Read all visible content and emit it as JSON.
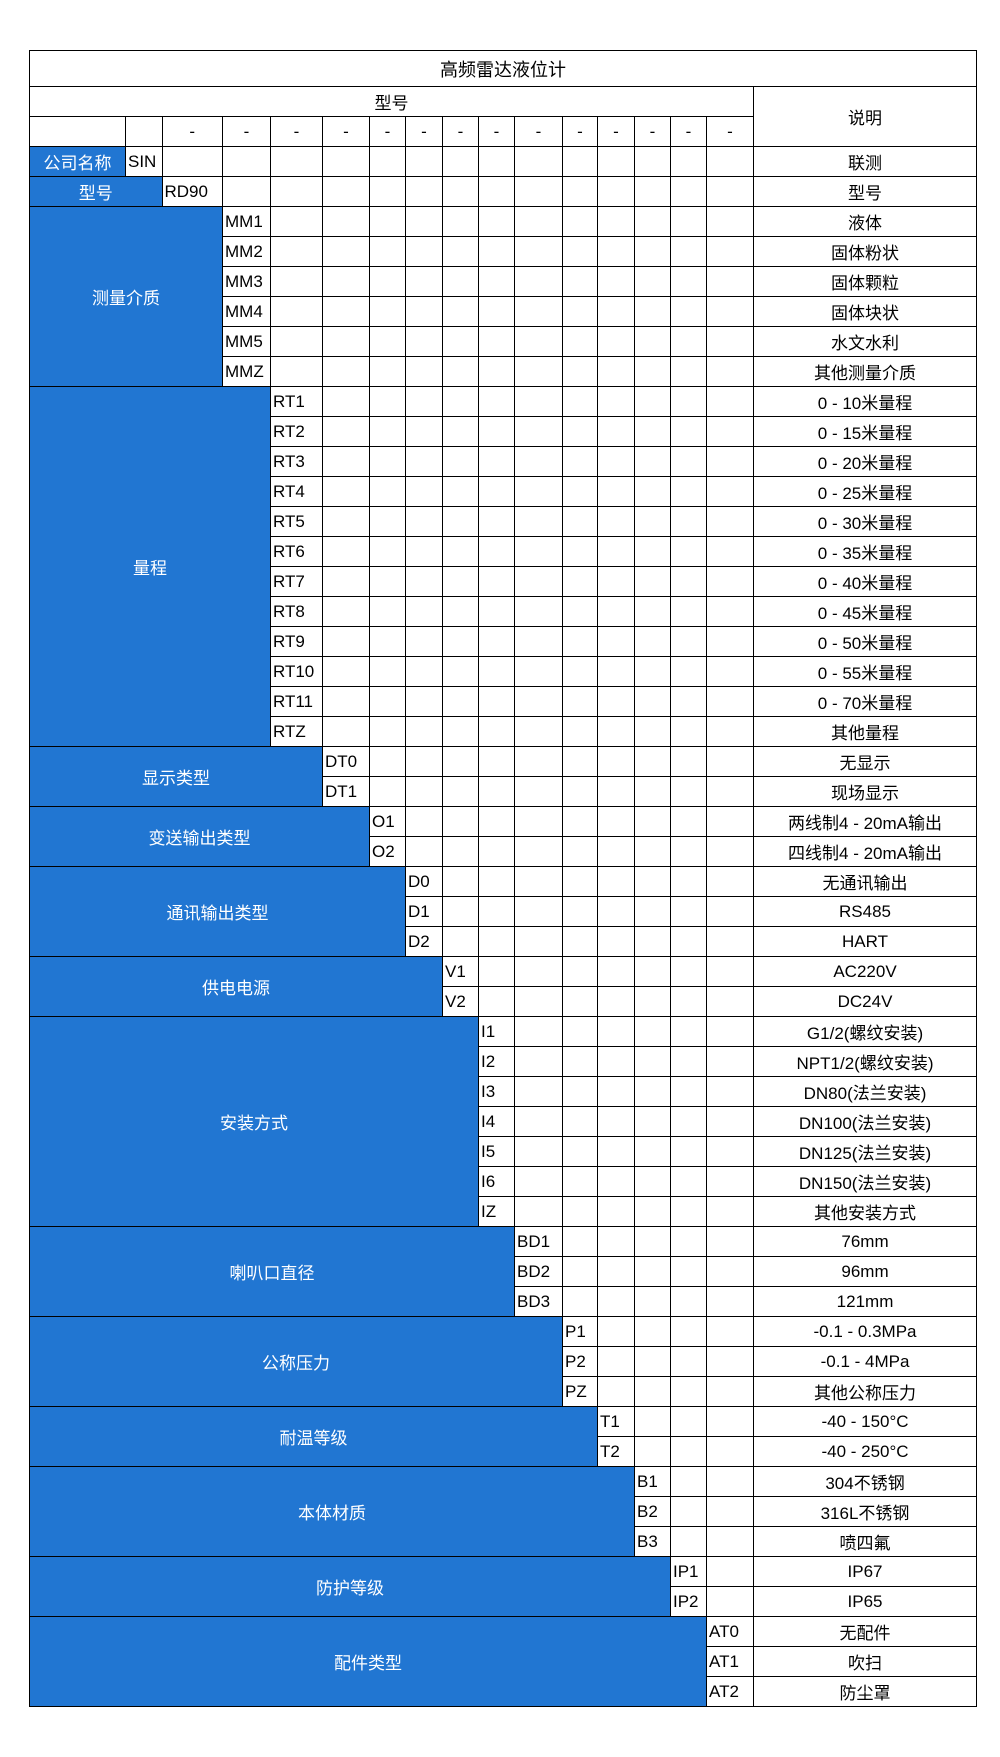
{
  "title": "高频雷达液位计",
  "header": {
    "model_label": "型号",
    "desc_label": "说明",
    "dash": "-"
  },
  "colors": {
    "category_fill": "#2176d2",
    "category_text": "#ffffff",
    "border": "#000000"
  },
  "groups": [
    {
      "label": "公司名称",
      "code_col": 1,
      "items": [
        {
          "code": "SIN",
          "desc": "联测"
        }
      ]
    },
    {
      "label": "型号",
      "code_col": 2,
      "items": [
        {
          "code": "RD90",
          "desc": "型号"
        }
      ]
    },
    {
      "label": "测量介质",
      "code_col": 3,
      "items": [
        {
          "code": "MM1",
          "desc": "液体"
        },
        {
          "code": "MM2",
          "desc": "固体粉状"
        },
        {
          "code": "MM3",
          "desc": "固体颗粒"
        },
        {
          "code": "MM4",
          "desc": "固体块状"
        },
        {
          "code": "MM5",
          "desc": "水文水利"
        },
        {
          "code": "MMZ",
          "desc": "其他测量介质"
        }
      ]
    },
    {
      "label": "量程",
      "code_col": 4,
      "items": [
        {
          "code": "RT1",
          "desc": "0 - 10米量程"
        },
        {
          "code": "RT2",
          "desc": "0 - 15米量程"
        },
        {
          "code": "RT3",
          "desc": "0 - 20米量程"
        },
        {
          "code": "RT4",
          "desc": "0 - 25米量程"
        },
        {
          "code": "RT5",
          "desc": "0 - 30米量程"
        },
        {
          "code": "RT6",
          "desc": "0 - 35米量程"
        },
        {
          "code": "RT7",
          "desc": "0 - 40米量程"
        },
        {
          "code": "RT8",
          "desc": "0 - 45米量程"
        },
        {
          "code": "RT9",
          "desc": "0 - 50米量程"
        },
        {
          "code": "RT10",
          "desc": "0 - 55米量程"
        },
        {
          "code": "RT11",
          "desc": "0 - 70米量程"
        },
        {
          "code": "RTZ",
          "desc": "其他量程"
        }
      ]
    },
    {
      "label": "显示类型",
      "code_col": 5,
      "items": [
        {
          "code": "DT0",
          "desc": "无显示"
        },
        {
          "code": "DT1",
          "desc": "现场显示"
        }
      ]
    },
    {
      "label": "变送输出类型",
      "code_col": 6,
      "items": [
        {
          "code": "O1",
          "desc": "两线制4 - 20mA输出"
        },
        {
          "code": "O2",
          "desc": "四线制4 - 20mA输出"
        }
      ]
    },
    {
      "label": "通讯输出类型",
      "code_col": 7,
      "items": [
        {
          "code": "D0",
          "desc": "无通讯输出"
        },
        {
          "code": "D1",
          "desc": "RS485"
        },
        {
          "code": "D2",
          "desc": "HART"
        }
      ]
    },
    {
      "label": "供电电源",
      "code_col": 8,
      "items": [
        {
          "code": "V1",
          "desc": "AC220V"
        },
        {
          "code": "V2",
          "desc": "DC24V"
        }
      ]
    },
    {
      "label": "安装方式",
      "code_col": 9,
      "items": [
        {
          "code": "I1",
          "desc": "G1/2(螺纹安装)"
        },
        {
          "code": "I2",
          "desc": "NPT1/2(螺纹安装)"
        },
        {
          "code": "I3",
          "desc": "DN80(法兰安装)"
        },
        {
          "code": "I4",
          "desc": "DN100(法兰安装)"
        },
        {
          "code": "I5",
          "desc": "DN125(法兰安装)"
        },
        {
          "code": "I6",
          "desc": "DN150(法兰安装)"
        },
        {
          "code": "IZ",
          "desc": "其他安装方式"
        }
      ]
    },
    {
      "label": "喇叭口直径",
      "code_col": 10,
      "items": [
        {
          "code": "BD1",
          "desc": "76mm"
        },
        {
          "code": "BD2",
          "desc": "96mm"
        },
        {
          "code": "BD3",
          "desc": "121mm"
        }
      ]
    },
    {
      "label": "公称压力",
      "code_col": 11,
      "items": [
        {
          "code": "P1",
          "desc": "-0.1 - 0.3MPa"
        },
        {
          "code": "P2",
          "desc": "-0.1 - 4MPa"
        },
        {
          "code": "PZ",
          "desc": "其他公称压力"
        }
      ]
    },
    {
      "label": "耐温等级",
      "code_col": 12,
      "items": [
        {
          "code": "T1",
          "desc": "-40 - 150°C"
        },
        {
          "code": "T2",
          "desc": "-40 - 250°C"
        }
      ]
    },
    {
      "label": "本体材质",
      "code_col": 13,
      "items": [
        {
          "code": "B1",
          "desc": "304不锈钢"
        },
        {
          "code": "B2",
          "desc": "316L不锈钢"
        },
        {
          "code": "B3",
          "desc": "喷四氟"
        }
      ]
    },
    {
      "label": "防护等级",
      "code_col": 14,
      "items": [
        {
          "code": "IP1",
          "desc": "IP67"
        },
        {
          "code": "IP2",
          "desc": "IP65"
        }
      ]
    },
    {
      "label": "配件类型",
      "code_col": 15,
      "items": [
        {
          "code": "AT0",
          "desc": "无配件"
        },
        {
          "code": "AT1",
          "desc": "吹扫"
        },
        {
          "code": "AT2",
          "desc": "防尘罩"
        }
      ]
    }
  ]
}
